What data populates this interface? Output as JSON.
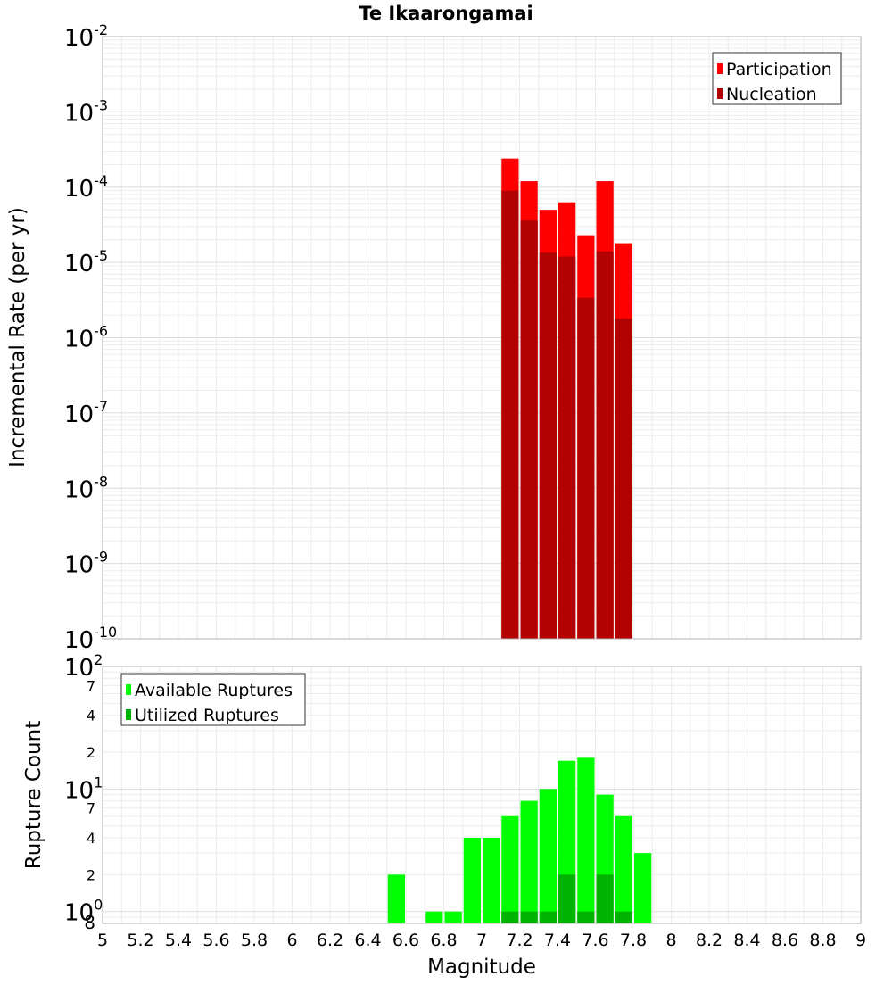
{
  "chart_data": [
    {
      "type": "bar",
      "title": "Te Ikaarongamai",
      "xlabel": "",
      "ylabel": "Incremental Rate (per yr)",
      "yscale": "log",
      "ylim": [
        1e-10,
        0.01
      ],
      "xlim": [
        5,
        9
      ],
      "grid": true,
      "legend_position": "top-right",
      "y_ticks": [
        {
          "base": "10",
          "exp": "-10"
        },
        {
          "base": "10",
          "exp": "-9"
        },
        {
          "base": "10",
          "exp": "-8"
        },
        {
          "base": "10",
          "exp": "-7"
        },
        {
          "base": "10",
          "exp": "-6"
        },
        {
          "base": "10",
          "exp": "-5"
        },
        {
          "base": "10",
          "exp": "-4"
        },
        {
          "base": "10",
          "exp": "-3"
        },
        {
          "base": "10",
          "exp": "-2"
        }
      ],
      "bin_width": 0.1,
      "x": [
        7.15,
        7.25,
        7.35,
        7.45,
        7.55,
        7.65,
        7.75
      ],
      "series": [
        {
          "name": "Participation",
          "color": "#ff0000",
          "values": [
            0.00024,
            0.00012,
            5e-05,
            6.3e-05,
            2.3e-05,
            0.00012,
            1.8e-05
          ]
        },
        {
          "name": "Nucleation",
          "color": "#b30000",
          "values": [
            9e-05,
            3.6e-05,
            1.35e-05,
            1.2e-05,
            3.4e-06,
            1.4e-05,
            1.8e-06
          ]
        }
      ]
    },
    {
      "type": "bar",
      "title": "",
      "xlabel": "Magnitude",
      "ylabel": "Rupture Count",
      "yscale": "log",
      "ylim": [
        0.8,
        100
      ],
      "xlim": [
        5,
        9
      ],
      "grid": true,
      "legend_position": "top-left",
      "x_ticks": [
        "5",
        "5.2",
        "5.4",
        "5.6",
        "5.8",
        "6",
        "6.2",
        "6.4",
        "6.6",
        "6.8",
        "7",
        "7.2",
        "7.4",
        "7.6",
        "7.8",
        "8",
        "8.2",
        "8.4",
        "8.6",
        "8.8",
        "9"
      ],
      "y_ticks": [
        {
          "value": 1,
          "base": "10",
          "exp": "0"
        },
        {
          "value": 10,
          "base": "10",
          "exp": "1"
        },
        {
          "value": 100,
          "base": "10",
          "exp": "2"
        }
      ],
      "y_minor_labels": [
        {
          "value": 0.8,
          "label": "8"
        },
        {
          "value": 2,
          "label": "2"
        },
        {
          "value": 4,
          "label": "4"
        },
        {
          "value": 7,
          "label": "7"
        },
        {
          "value": 20,
          "label": "2"
        },
        {
          "value": 40,
          "label": "4"
        },
        {
          "value": 70,
          "label": "7"
        }
      ],
      "bin_width": 0.1,
      "series": [
        {
          "name": "Available Ruptures",
          "color": "#00ff00",
          "x": [
            6.55,
            6.75,
            6.85,
            6.95,
            7.05,
            7.15,
            7.25,
            7.35,
            7.45,
            7.55,
            7.65,
            7.75,
            7.85
          ],
          "values": [
            2,
            1,
            1,
            4,
            4,
            6,
            8,
            10,
            17,
            18,
            9,
            6,
            3
          ]
        },
        {
          "name": "Utilized Ruptures",
          "color": "#00b300",
          "x": [
            7.15,
            7.25,
            7.35,
            7.45,
            7.55,
            7.65,
            7.75
          ],
          "values": [
            1,
            1,
            1,
            2,
            1,
            2,
            1
          ]
        }
      ]
    }
  ]
}
